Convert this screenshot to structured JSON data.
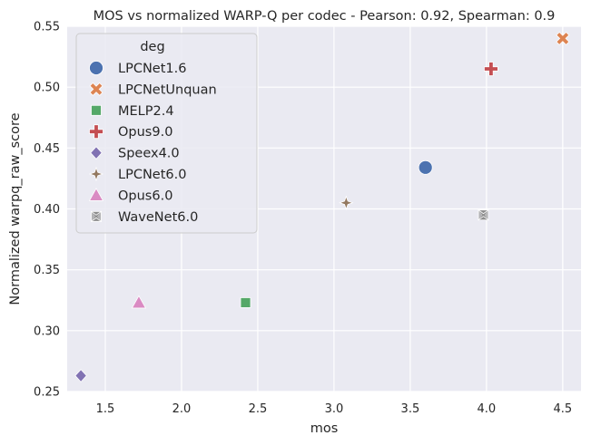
{
  "chart_data": {
    "type": "scatter",
    "title": "MOS vs normalized WARP-Q per codec - Pearson: 0.92, Spearman: 0.9",
    "xlabel": "mos",
    "ylabel": "Normalized warpq_raw_score",
    "xlim": [
      1.25,
      4.62
    ],
    "ylim": [
      0.25,
      0.55
    ],
    "xticks": [
      "1.5",
      "2.0",
      "2.5",
      "3.0",
      "3.5",
      "4.0",
      "4.5"
    ],
    "yticks": [
      "0.25",
      "0.30",
      "0.35",
      "0.40",
      "0.45",
      "0.50",
      "0.55"
    ],
    "grid": true,
    "legend_title": "deg",
    "legend_position": "top-left",
    "series": [
      {
        "name": "LPCNet1.6",
        "marker": "circle",
        "color": "#4c72b0",
        "x": 3.6,
        "y": 0.434
      },
      {
        "name": "LPCNetUnquan",
        "marker": "x",
        "color": "#dd8452",
        "x": 4.5,
        "y": 0.54
      },
      {
        "name": "MELP2.4",
        "marker": "square",
        "color": "#55a868",
        "x": 2.42,
        "y": 0.323
      },
      {
        "name": "Opus9.0",
        "marker": "plus",
        "color": "#c44e52",
        "x": 4.03,
        "y": 0.515
      },
      {
        "name": "Speex4.0",
        "marker": "diamond",
        "color": "#8172b3",
        "x": 1.34,
        "y": 0.263
      },
      {
        "name": "LPCNet6.0",
        "marker": "star4",
        "color": "#937860",
        "x": 3.08,
        "y": 0.405
      },
      {
        "name": "Opus6.0",
        "marker": "triangle",
        "color": "#da8bc3",
        "x": 1.72,
        "y": 0.323
      },
      {
        "name": "WaveNet6.0",
        "marker": "hourglass",
        "color": "#8c8c8c",
        "x": 3.98,
        "y": 0.395
      }
    ]
  }
}
